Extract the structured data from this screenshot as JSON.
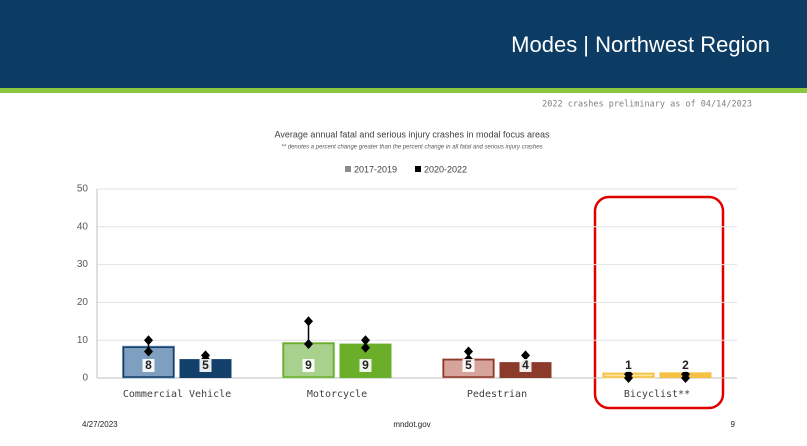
{
  "header": {
    "title": "Modes | Northwest Region"
  },
  "note": "2022 crashes preliminary as of 04/14/2023",
  "footer": {
    "date": "4/27/2023",
    "site": "mndot.gov",
    "page": "9"
  },
  "chart_data": {
    "type": "bar",
    "title": "Average annual fatal and serious injury crashes in modal focus areas",
    "subtitle": "** denotes a percent change greater than the percent change in all fatal and serious injury crashes",
    "categories": [
      "Commercial Vehicle",
      "Motorcycle",
      "Pedestrian",
      "Bicyclist**"
    ],
    "series": [
      {
        "name": "2017-2019",
        "color": "#8c8c8c",
        "colors": [
          "#7f9fc0",
          "#a9d18e",
          "#d6a49a",
          "#fbe3a0"
        ],
        "values": [
          8.4,
          9.4,
          5.1,
          1.4
        ],
        "value_labels": [
          "8",
          "9",
          "5",
          "1"
        ],
        "high": [
          10,
          15,
          7,
          1
        ],
        "low": [
          7,
          9,
          5,
          0
        ]
      },
      {
        "name": "2020-2022",
        "color": "#000000",
        "colors": [
          "#12406b",
          "#6aae2a",
          "#8c3a2c",
          "#f5c142"
        ],
        "values": [
          5,
          9.1,
          4.2,
          1.5
        ],
        "value_labels": [
          "5",
          "9",
          "4",
          "2"
        ],
        "high": [
          6,
          10,
          6,
          1
        ],
        "low": [
          5,
          8,
          4,
          0
        ]
      }
    ],
    "ylim": [
      0,
      50
    ],
    "yticks": [
      0,
      10,
      20,
      30,
      40,
      50
    ],
    "grid": true
  }
}
